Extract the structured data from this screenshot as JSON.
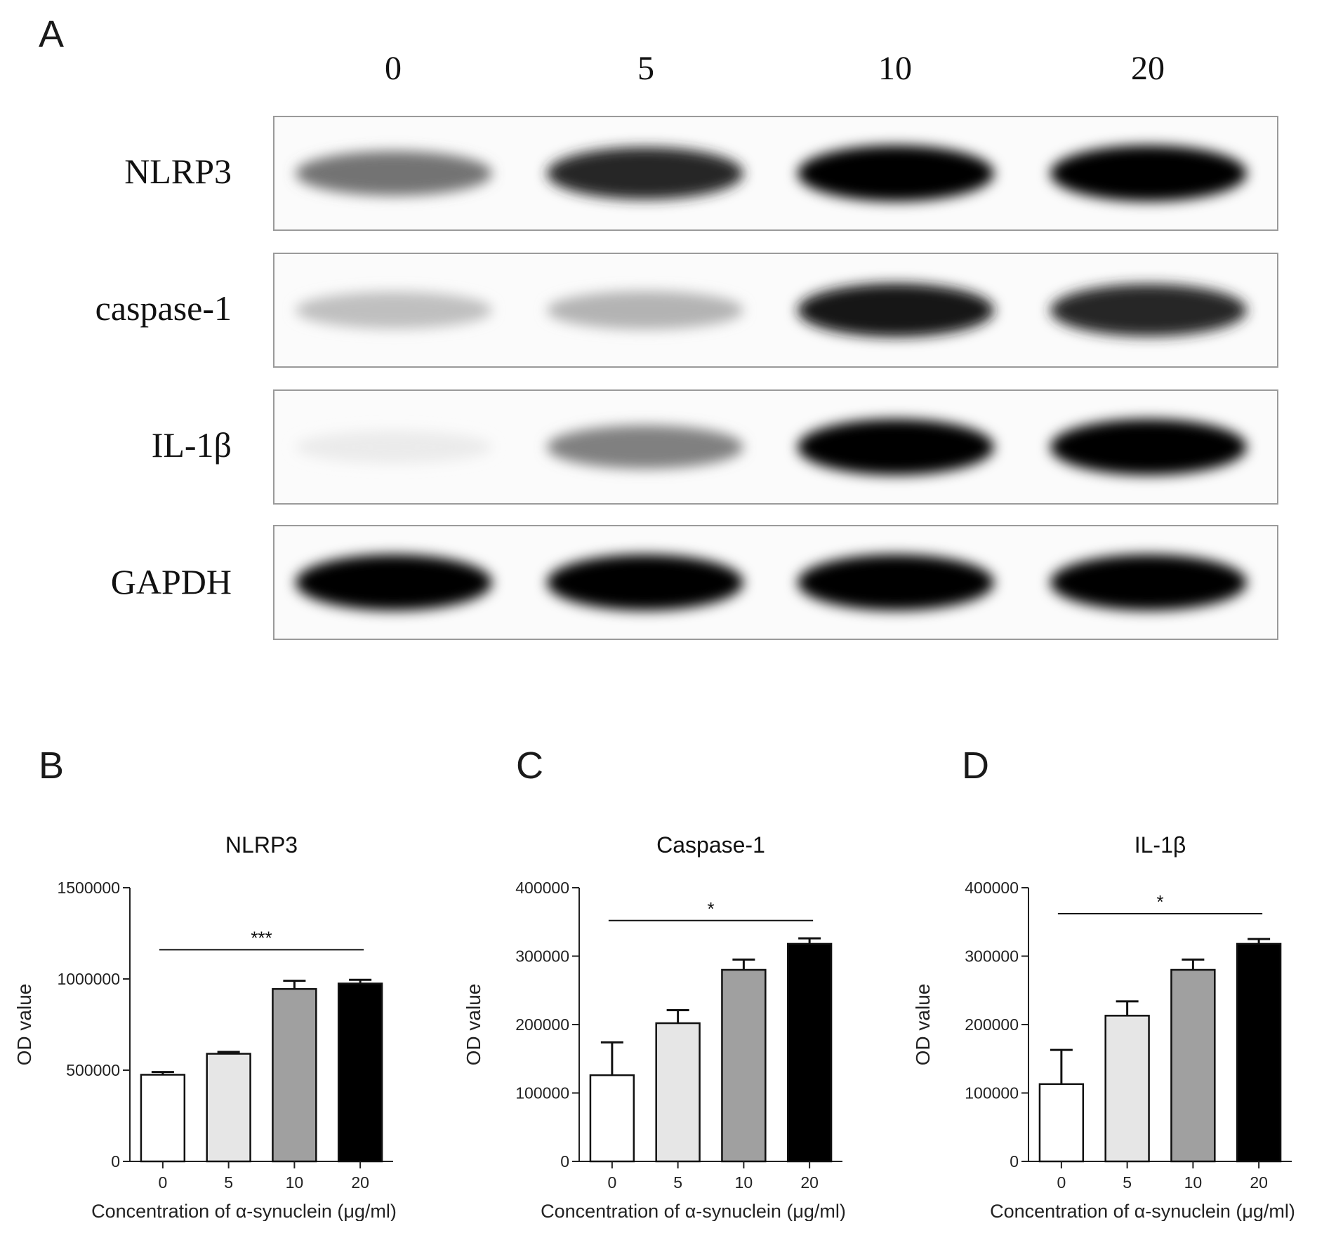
{
  "panel_a": {
    "letter": "A",
    "concentrations": [
      "0",
      "5",
      "10",
      "20"
    ],
    "rows": [
      {
        "label": "NLRP3",
        "intensity": [
          0.55,
          0.85,
          1.0,
          1.0
        ]
      },
      {
        "label": "caspase-1",
        "intensity": [
          0.25,
          0.3,
          0.9,
          0.85
        ]
      },
      {
        "label": "IL-1β",
        "intensity": [
          0.08,
          0.5,
          1.0,
          1.0
        ]
      },
      {
        "label": "GAPDH",
        "intensity": [
          1.0,
          1.0,
          1.0,
          1.0
        ]
      }
    ]
  },
  "chart_data": [
    {
      "letter": "B",
      "type": "bar",
      "title": "NLRP3",
      "ylabel": "OD value",
      "xlabel": "Concentration of α-synuclein (μg/ml)",
      "categories": [
        "0",
        "5",
        "10",
        "20"
      ],
      "values": [
        475000,
        590000,
        945000,
        975000
      ],
      "errors": [
        15000,
        10000,
        45000,
        20000
      ],
      "ylim": [
        0,
        1500000
      ],
      "yticks": [
        "0",
        "500000",
        "1000000",
        "1500000"
      ],
      "ytick_values": [
        0,
        500000,
        1000000,
        1500000
      ],
      "significance": {
        "text": "***",
        "from": "0",
        "to": "20",
        "y": 1160000
      },
      "bar_colors": [
        "#ffffff",
        "#e6e6e6",
        "#a0a0a0",
        "#000000"
      ]
    },
    {
      "letter": "C",
      "type": "bar",
      "title": "Caspase-1",
      "ylabel": "OD value",
      "xlabel": "Concentration of α-synuclein (μg/ml)",
      "categories": [
        "0",
        "5",
        "10",
        "20"
      ],
      "values": [
        126000,
        202000,
        280000,
        318000
      ],
      "errors": [
        48000,
        19000,
        15000,
        8000
      ],
      "ylim": [
        0,
        400000
      ],
      "yticks": [
        "0",
        "100000",
        "200000",
        "300000",
        "400000"
      ],
      "ytick_values": [
        0,
        100000,
        200000,
        300000,
        400000
      ],
      "significance": {
        "text": "*",
        "from": "0",
        "to": "20",
        "y": 352000
      },
      "bar_colors": [
        "#ffffff",
        "#e6e6e6",
        "#a0a0a0",
        "#000000"
      ]
    },
    {
      "letter": "D",
      "type": "bar",
      "title": "IL-1β",
      "ylabel": "OD value",
      "xlabel": "Concentration of α-synuclein (μg/ml)",
      "categories": [
        "0",
        "5",
        "10",
        "20"
      ],
      "values": [
        113000,
        213000,
        280000,
        318000
      ],
      "errors": [
        50000,
        21000,
        15000,
        7000
      ],
      "ylim": [
        0,
        400000
      ],
      "yticks": [
        "0",
        "100000",
        "200000",
        "300000",
        "400000"
      ],
      "ytick_values": [
        0,
        100000,
        200000,
        300000,
        400000
      ],
      "significance": {
        "text": "*",
        "from": "0",
        "to": "20",
        "y": 362000
      },
      "bar_colors": [
        "#ffffff",
        "#e6e6e6",
        "#a0a0a0",
        "#000000"
      ]
    }
  ]
}
